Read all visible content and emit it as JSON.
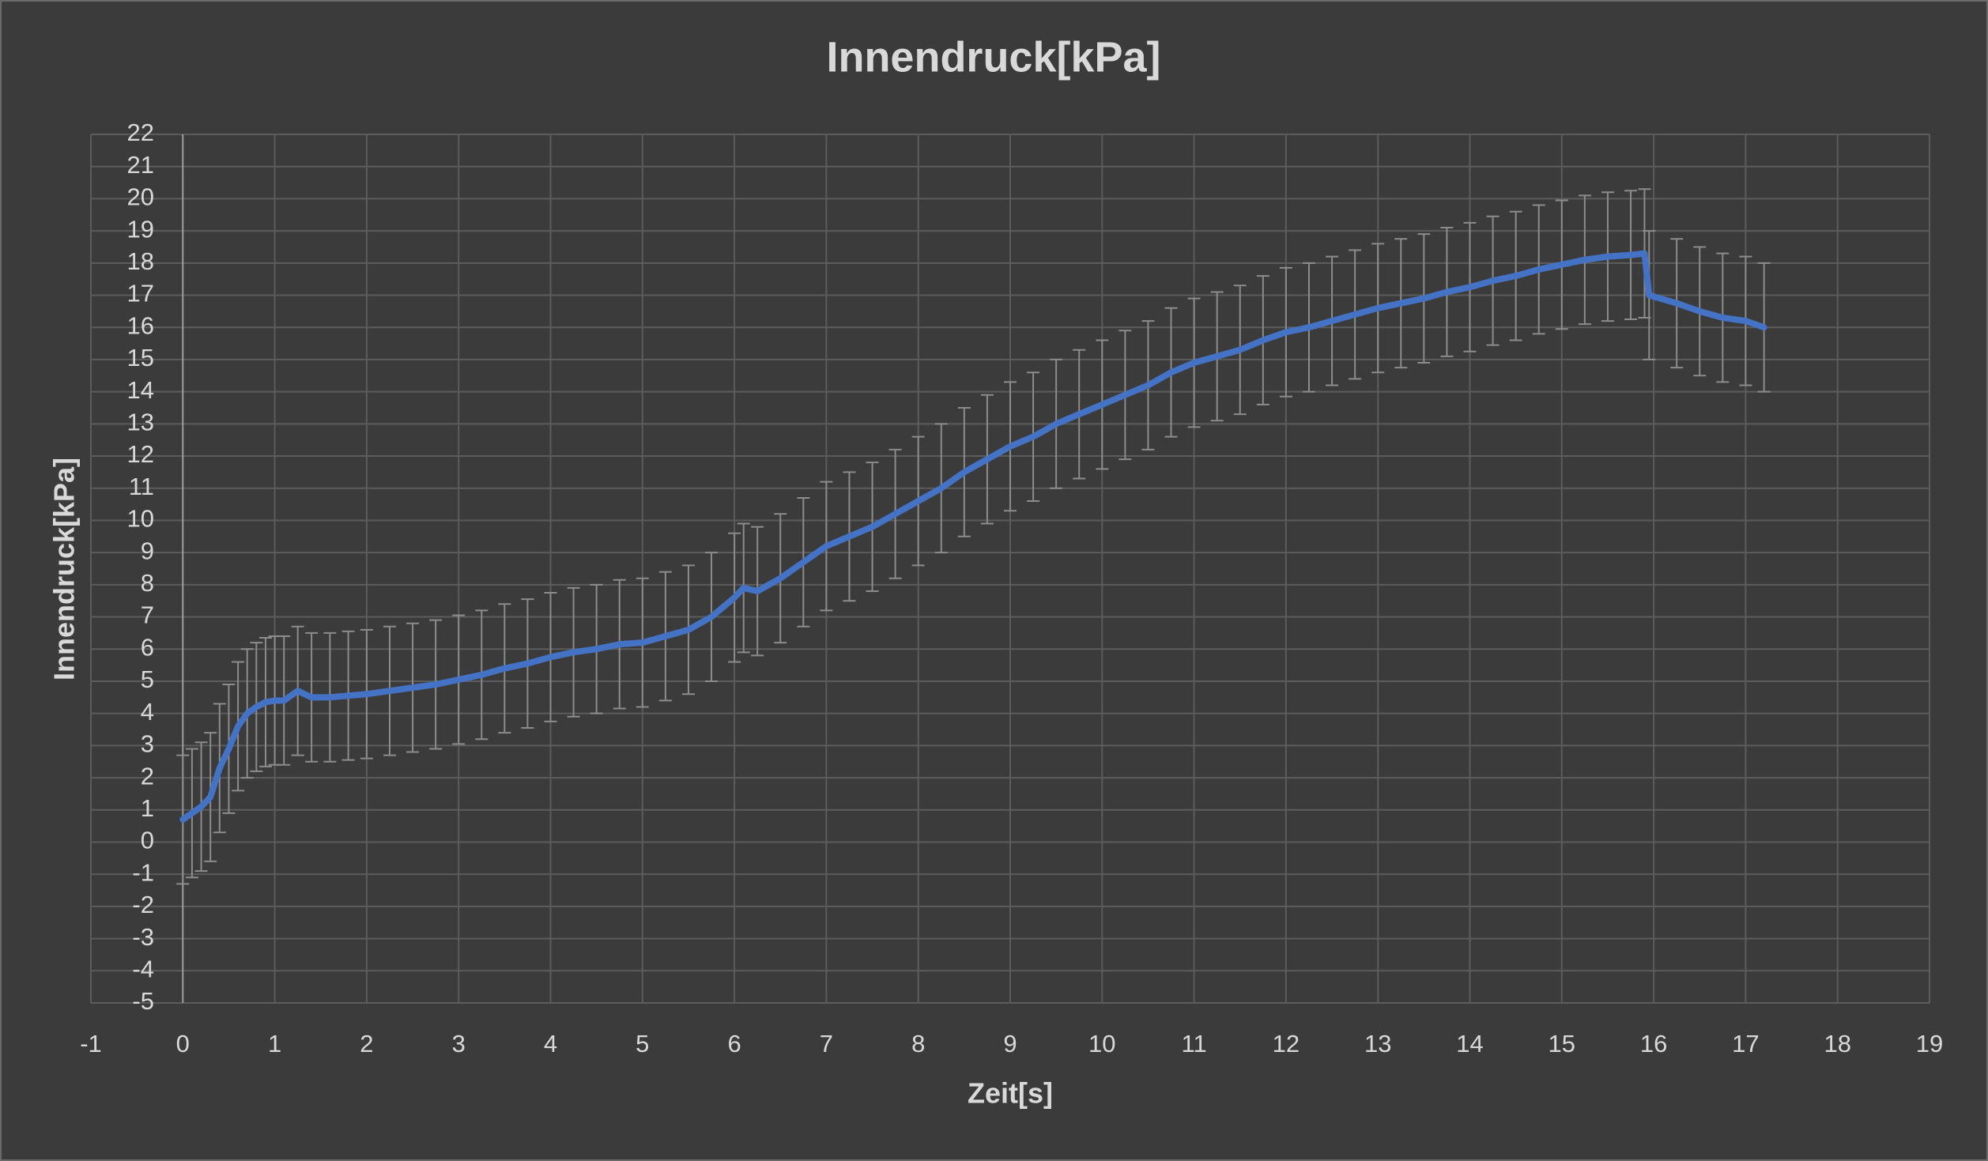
{
  "chart_data": {
    "type": "line",
    "title": "Innendruck[kPa]",
    "x_label": "Zeit[s]",
    "y_label": "Innendruck[kPa]",
    "x": [
      0,
      0.1,
      0.2,
      0.3,
      0.4,
      0.5,
      0.6,
      0.7,
      0.8,
      0.9,
      1.0,
      1.1,
      1.25,
      1.4,
      1.6,
      1.8,
      2.0,
      2.25,
      2.5,
      2.75,
      3.0,
      3.25,
      3.5,
      3.75,
      4.0,
      4.25,
      4.5,
      4.75,
      5.0,
      5.25,
      5.5,
      5.75,
      6.0,
      6.1,
      6.25,
      6.5,
      6.75,
      7.0,
      7.25,
      7.5,
      7.75,
      8.0,
      8.25,
      8.5,
      8.75,
      9.0,
      9.25,
      9.5,
      9.75,
      10.0,
      10.25,
      10.5,
      10.75,
      11.0,
      11.25,
      11.5,
      11.75,
      12.0,
      12.25,
      12.5,
      12.75,
      13.0,
      13.25,
      13.5,
      13.75,
      14.0,
      14.25,
      14.5,
      14.75,
      15.0,
      15.25,
      15.5,
      15.75,
      15.9,
      15.95,
      16.25,
      16.5,
      16.75,
      17.0,
      17.2
    ],
    "series": [
      {
        "color": "#4472c4",
        "error": 2,
        "values": [
          0.7,
          0.9,
          1.1,
          1.4,
          2.3,
          2.9,
          3.6,
          4.0,
          4.2,
          4.35,
          4.4,
          4.4,
          4.7,
          4.5,
          4.5,
          4.55,
          4.6,
          4.7,
          4.8,
          4.9,
          5.05,
          5.2,
          5.4,
          5.55,
          5.75,
          5.9,
          6.0,
          6.15,
          6.2,
          6.4,
          6.6,
          7.0,
          7.6,
          7.9,
          7.8,
          8.2,
          8.7,
          9.2,
          9.5,
          9.8,
          10.2,
          10.6,
          11.0,
          11.5,
          11.9,
          12.3,
          12.6,
          13.0,
          13.3,
          13.6,
          13.9,
          14.2,
          14.6,
          14.9,
          15.1,
          15.3,
          15.6,
          15.85,
          16.0,
          16.2,
          16.4,
          16.6,
          16.75,
          16.9,
          17.1,
          17.25,
          17.45,
          17.6,
          17.8,
          17.95,
          18.1,
          18.2,
          18.25,
          18.3,
          17.0,
          16.75,
          16.5,
          16.3,
          16.2,
          16.0
        ]
      }
    ],
    "xlim": [
      -1,
      19
    ],
    "xticks": [
      -1,
      0,
      1,
      2,
      3,
      4,
      5,
      6,
      7,
      8,
      9,
      10,
      11,
      12,
      13,
      14,
      15,
      16,
      17,
      18,
      19
    ],
    "ylim": [
      -5,
      22
    ],
    "yticks": [
      -5,
      -4,
      -3,
      -2,
      -1,
      0,
      1,
      2,
      3,
      4,
      5,
      6,
      7,
      8,
      9,
      10,
      11,
      12,
      13,
      14,
      15,
      16,
      17,
      18,
      19,
      20,
      21,
      22
    ],
    "grid": true
  }
}
